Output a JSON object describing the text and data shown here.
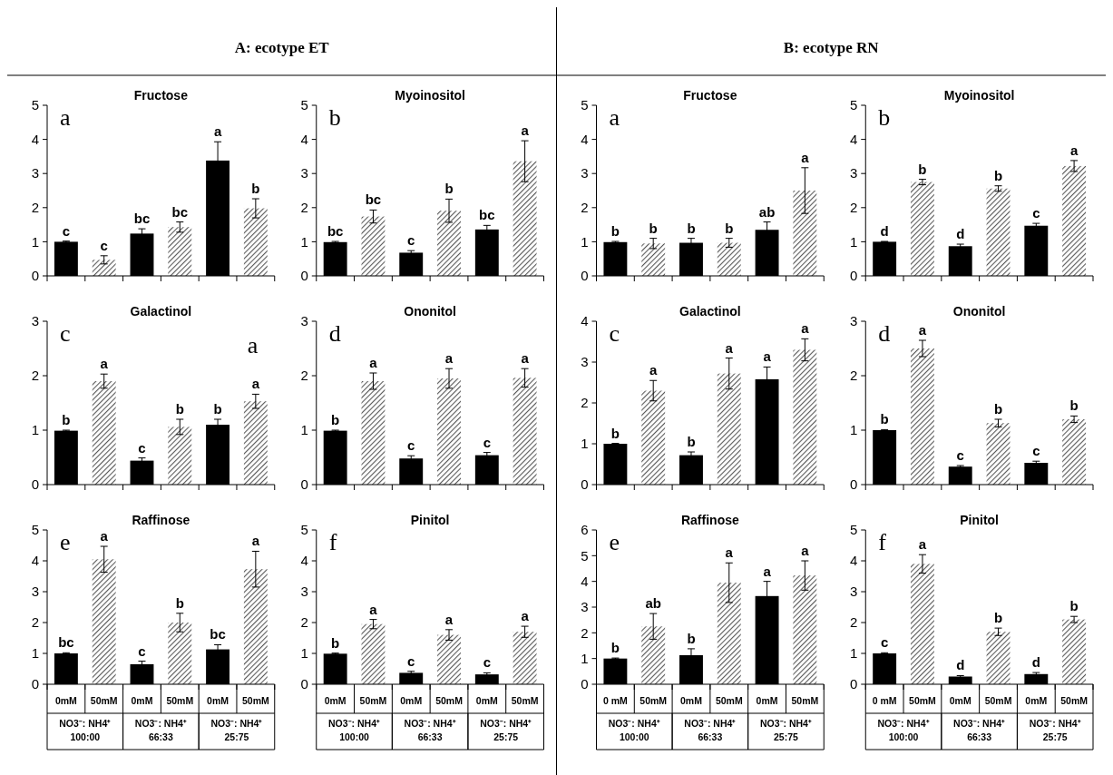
{
  "chart_data": [
    {
      "type": "other",
      "title": "A: ecotype ET"
    },
    {
      "type": "bar",
      "title": "Fructose",
      "annotations": [
        "a"
      ],
      "categories": [
        null,
        null,
        null,
        null,
        null,
        null
      ],
      "tick_labels": "y",
      "values": [
        1.0,
        0.47,
        1.24,
        1.43,
        3.38,
        1.98
      ],
      "errors": [
        0.02,
        0.12,
        0.14,
        0.15,
        0.55,
        0.28
      ],
      "value_labels": [
        "c",
        "c",
        "bc",
        "bc",
        "a",
        "b"
      ],
      "colors": [
        "#000000",
        "#595959",
        "#000000",
        "#595959",
        "#000000",
        "#595959"
      ],
      "ylim": [
        0,
        5
      ],
      "yticks": [
        0,
        1,
        2,
        3,
        4,
        5
      ]
    },
    {
      "type": "bar",
      "title": "Myoinositol",
      "annotations": [
        "b"
      ],
      "categories": [
        null,
        null,
        null,
        null,
        null,
        null
      ],
      "tick_labels": "y",
      "values": [
        0.99,
        1.74,
        0.68,
        1.91,
        1.36,
        3.36
      ],
      "errors": [
        0.02,
        0.19,
        0.06,
        0.34,
        0.12,
        0.6
      ],
      "value_labels": [
        "bc",
        "bc",
        "c",
        "b",
        "bc",
        "a"
      ],
      "colors": [
        "#000000",
        "#595959",
        "#000000",
        "#595959",
        "#000000",
        "#595959"
      ],
      "ylim": [
        0,
        5
      ],
      "yticks": [
        0,
        1,
        2,
        3,
        4,
        5
      ]
    },
    {
      "type": "bar",
      "title": "Galactinol",
      "annotations": [
        "c",
        "a"
      ],
      "categories": [
        null,
        null,
        null,
        null,
        null,
        null
      ],
      "tick_labels": "y",
      "values": [
        0.99,
        1.9,
        0.44,
        1.06,
        1.1,
        1.53
      ],
      "errors": [
        0.01,
        0.13,
        0.05,
        0.14,
        0.1,
        0.13
      ],
      "value_labels": [
        "b",
        "a",
        "c",
        "b",
        "b",
        "a"
      ],
      "colors": [
        "#000000",
        "#595959",
        "#000000",
        "#595959",
        "#000000",
        "#595959"
      ],
      "ylim": [
        0,
        3
      ],
      "yticks": [
        0,
        1,
        2,
        3
      ]
    },
    {
      "type": "bar",
      "title": "Ononitol",
      "annotations": [
        "d"
      ],
      "categories": [
        null,
        null,
        null,
        null,
        null,
        null
      ],
      "tick_labels": "y",
      "values": [
        0.99,
        1.9,
        0.48,
        1.95,
        0.54,
        1.96
      ],
      "errors": [
        0.01,
        0.15,
        0.05,
        0.18,
        0.05,
        0.17
      ],
      "value_labels": [
        "b",
        "a",
        "c",
        "a",
        "c",
        "a"
      ],
      "colors": [
        "#000000",
        "#595959",
        "#000000",
        "#595959",
        "#000000",
        "#595959"
      ],
      "ylim": [
        0,
        3
      ],
      "yticks": [
        0,
        1,
        2,
        3
      ]
    },
    {
      "type": "bar",
      "title": "Raffinose",
      "annotations": [
        "e",
        "NO3⁻: NH4⁺\n100:00",
        "NO3⁻: NH4⁺\n66:33",
        "NO3⁻: NH4⁺\n25:75"
      ],
      "categories": [
        "0mM",
        "50mM",
        "0mM",
        "50mM",
        "0mM",
        "50mM"
      ],
      "values": [
        1.0,
        4.05,
        0.65,
        2.0,
        1.13,
        3.73
      ],
      "errors": [
        0.02,
        0.42,
        0.1,
        0.3,
        0.15,
        0.58
      ],
      "value_labels": [
        "bc",
        "a",
        "c",
        "b",
        "bc",
        "a"
      ],
      "colors": [
        "#000000",
        "#595959",
        "#000000",
        "#595959",
        "#000000",
        "#595959"
      ],
      "ylim": [
        0,
        5
      ],
      "yticks": [
        0,
        1,
        2,
        3,
        4,
        5
      ]
    },
    {
      "type": "bar",
      "title": "Pinitol",
      "annotations": [
        "f",
        "NO3⁻: NH4⁺\n100:00",
        "NO3⁻: NH4⁺\n66:33",
        "NO3⁻: NH4⁺\n25:75"
      ],
      "categories": [
        "0mM",
        "50mM",
        "0mM",
        "50mM",
        "0mM",
        "50mM"
      ],
      "values": [
        0.99,
        1.95,
        0.37,
        1.6,
        0.32,
        1.7
      ],
      "errors": [
        0.02,
        0.15,
        0.05,
        0.17,
        0.05,
        0.18
      ],
      "value_labels": [
        "b",
        "a",
        "c",
        "a",
        "c",
        "a"
      ],
      "colors": [
        "#000000",
        "#595959",
        "#000000",
        "#595959",
        "#000000",
        "#595959"
      ],
      "ylim": [
        0,
        5
      ],
      "yticks": [
        0,
        1,
        2,
        3,
        4,
        5
      ]
    },
    {
      "type": "other",
      "title": "B: ecotype RN"
    },
    {
      "type": "bar",
      "title": "Fructose",
      "annotations": [
        "a"
      ],
      "categories": [
        null,
        null,
        null,
        null,
        null,
        null
      ],
      "tick_labels": "y",
      "values": [
        0.99,
        0.95,
        0.97,
        0.97,
        1.35,
        2.5
      ],
      "errors": [
        0.02,
        0.15,
        0.13,
        0.13,
        0.23,
        0.67
      ],
      "value_labels": [
        "b",
        "b",
        "b",
        "b",
        "ab",
        "a"
      ],
      "colors": [
        "#000000",
        "#595959",
        "#000000",
        "#595959",
        "#000000",
        "#595959"
      ],
      "ylim": [
        0,
        5
      ],
      "yticks": [
        0,
        1,
        2,
        3,
        4,
        5
      ]
    },
    {
      "type": "bar",
      "title": "Myoinositol",
      "annotations": [
        "b"
      ],
      "categories": [
        null,
        null,
        null,
        null,
        null,
        null
      ],
      "tick_labels": "y",
      "values": [
        1.0,
        2.75,
        0.87,
        2.56,
        1.47,
        3.22
      ],
      "errors": [
        0.01,
        0.08,
        0.06,
        0.08,
        0.07,
        0.16
      ],
      "value_labels": [
        "d",
        "b",
        "d",
        "b",
        "c",
        "a"
      ],
      "colors": [
        "#000000",
        "#595959",
        "#000000",
        "#595959",
        "#000000",
        "#595959"
      ],
      "ylim": [
        0,
        5
      ],
      "yticks": [
        0,
        1,
        2,
        3,
        4,
        5
      ]
    },
    {
      "type": "bar",
      "title": "Galactinol",
      "annotations": [
        "c"
      ],
      "categories": [
        null,
        null,
        null,
        null,
        null,
        null
      ],
      "tick_labels": "y",
      "values": [
        1.0,
        2.3,
        0.72,
        2.72,
        2.58,
        3.3
      ],
      "errors": [
        0.01,
        0.25,
        0.08,
        0.38,
        0.3,
        0.27
      ],
      "value_labels": [
        "b",
        "a",
        "b",
        "a",
        "a",
        "a"
      ],
      "colors": [
        "#000000",
        "#595959",
        "#000000",
        "#595959",
        "#000000",
        "#595959"
      ],
      "ylim": [
        0,
        4
      ],
      "yticks": [
        0,
        1,
        2,
        3,
        4
      ]
    },
    {
      "type": "bar",
      "title": "Ononitol",
      "annotations": [
        "d"
      ],
      "categories": [
        null,
        null,
        null,
        null,
        null,
        null
      ],
      "tick_labels": "y",
      "values": [
        1.0,
        2.5,
        0.33,
        1.13,
        0.4,
        1.2
      ],
      "errors": [
        0.01,
        0.15,
        0.02,
        0.07,
        0.03,
        0.06
      ],
      "value_labels": [
        "b",
        "a",
        "c",
        "b",
        "c",
        "b"
      ],
      "colors": [
        "#000000",
        "#595959",
        "#000000",
        "#595959",
        "#000000",
        "#595959"
      ],
      "ylim": [
        0,
        3
      ],
      "yticks": [
        0,
        1,
        2,
        3
      ]
    },
    {
      "type": "bar",
      "title": "Raffinose",
      "annotations": [
        "e",
        "NO3⁻: NH4⁺\n100:00",
        "NO3⁻: NH4⁺\n66:33",
        "NO3⁻: NH4⁺\n25:75"
      ],
      "categories": [
        "0 mM",
        "50mM",
        "0mM",
        "50mM",
        "0mM",
        "50mM"
      ],
      "values": [
        1.0,
        2.25,
        1.13,
        3.95,
        3.43,
        4.23
      ],
      "errors": [
        0.02,
        0.5,
        0.25,
        0.77,
        0.57,
        0.57
      ],
      "value_labels": [
        "b",
        "ab",
        "b",
        "a",
        "a",
        "a"
      ],
      "colors": [
        "#000000",
        "#595959",
        "#000000",
        "#595959",
        "#000000",
        "#595959"
      ],
      "ylim": [
        0,
        6
      ],
      "yticks": [
        0,
        1,
        2,
        3,
        4,
        5,
        6
      ]
    },
    {
      "type": "bar",
      "title": "Pinitol",
      "annotations": [
        "f",
        "NO3⁻: NH4⁺\n100:00",
        "NO3⁻: NH4⁺\n66:33",
        "NO3⁻: NH4⁺\n25:75"
      ],
      "categories": [
        "0 mM",
        "50mM",
        "0mM",
        "50mM",
        "0mM",
        "50mM"
      ],
      "values": [
        1.0,
        3.9,
        0.25,
        1.7,
        0.33,
        2.1
      ],
      "errors": [
        0.02,
        0.3,
        0.03,
        0.12,
        0.05,
        0.1
      ],
      "value_labels": [
        "c",
        "a",
        "d",
        "b",
        "d",
        "b"
      ],
      "colors": [
        "#000000",
        "#595959",
        "#000000",
        "#595959",
        "#000000",
        "#595959"
      ],
      "ylim": [
        0,
        5
      ],
      "yticks": [
        0,
        1,
        2,
        3,
        4,
        5
      ]
    }
  ]
}
